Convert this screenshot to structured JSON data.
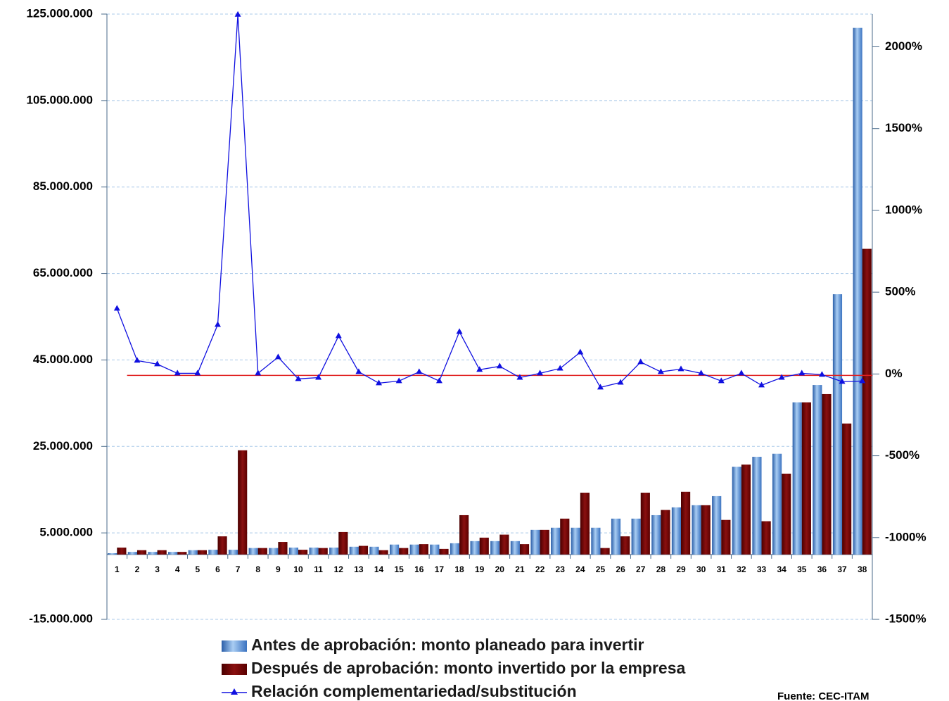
{
  "chart_data": {
    "type": "bar-line",
    "categories": [
      "1",
      "2",
      "3",
      "4",
      "5",
      "6",
      "7",
      "8",
      "9",
      "10",
      "11",
      "12",
      "13",
      "14",
      "15",
      "16",
      "17",
      "18",
      "19",
      "20",
      "21",
      "22",
      "23",
      "24",
      "25",
      "26",
      "27",
      "28",
      "29",
      "30",
      "31",
      "32",
      "33",
      "34",
      "35",
      "36",
      "37",
      "38"
    ],
    "series": [
      {
        "name": "Antes de aprobación: monto planeado para invertir",
        "color": "#4a86d0",
        "type": "bar",
        "values": [
          300000,
          600000,
          600000,
          600000,
          1000000,
          1100000,
          1100000,
          1500000,
          1500000,
          1600000,
          1600000,
          1600000,
          1800000,
          1800000,
          2300000,
          2300000,
          2300000,
          2600000,
          3100000,
          3100000,
          3100000,
          5700000,
          6200000,
          6200000,
          6200000,
          8300000,
          8300000,
          9100000,
          10900000,
          11400000,
          13500000,
          20300000,
          22600000,
          23300000,
          35200000,
          39200000,
          60200000,
          121800000
        ]
      },
      {
        "name": "Después de aprobación: monto invertido por la empresa",
        "color": "#7a0a0a",
        "type": "bar",
        "values": [
          1600000,
          1000000,
          1000000,
          600000,
          1000000,
          4200000,
          24100000,
          1500000,
          2900000,
          1100000,
          1500000,
          5200000,
          2000000,
          1000000,
          1500000,
          2400000,
          1300000,
          9100000,
          3900000,
          4600000,
          2400000,
          5700000,
          8300000,
          14300000,
          1500000,
          4200000,
          14300000,
          10300000,
          14500000,
          11400000,
          8000000,
          20800000,
          7700000,
          18700000,
          35200000,
          37100000,
          30300000,
          70700000
        ]
      },
      {
        "name": "Relación complementariedad/substitución",
        "color": "#1010e0",
        "type": "line",
        "axis": "y2",
        "values": [
          400,
          82,
          60,
          4,
          4,
          301,
          2197,
          4,
          103,
          -30,
          -22,
          232,
          13,
          -56,
          -43,
          13,
          -43,
          258,
          26,
          47,
          -22,
          4,
          34,
          133,
          -82,
          -52,
          73,
          13,
          30,
          4,
          -43,
          4,
          -69,
          -22,
          4,
          -4,
          -47,
          -43
        ]
      }
    ],
    "ylim": [
      -15000000,
      125000000
    ],
    "yticks": [
      {
        "value": -15000000,
        "label": "-15.000.000"
      },
      {
        "value": 5000000,
        "label": "5.000.000"
      },
      {
        "value": 25000000,
        "label": "25.000.000"
      },
      {
        "value": 45000000,
        "label": "45.000.000"
      },
      {
        "value": 65000000,
        "label": "65.000.000"
      },
      {
        "value": 85000000,
        "label": "85.000.000"
      },
      {
        "value": 105000000,
        "label": "105.000.000"
      },
      {
        "value": 125000000,
        "label": "125.000.000"
      }
    ],
    "y2lim": [
      -1500,
      2200
    ],
    "y2ticks": [
      {
        "value": -1500,
        "label": "-1500%"
      },
      {
        "value": -1000,
        "label": "-1000%"
      },
      {
        "value": -500,
        "label": "-500%"
      },
      {
        "value": 0,
        "label": "0%"
      },
      {
        "value": 500,
        "label": "500%"
      },
      {
        "value": 1000,
        "label": "1000%"
      },
      {
        "value": 1500,
        "label": "1500%"
      },
      {
        "value": 2000,
        "label": "2000%"
      }
    ],
    "grid": true,
    "reference_line_color": "#e02020",
    "source": "Fuente: CEC-ITAM"
  }
}
